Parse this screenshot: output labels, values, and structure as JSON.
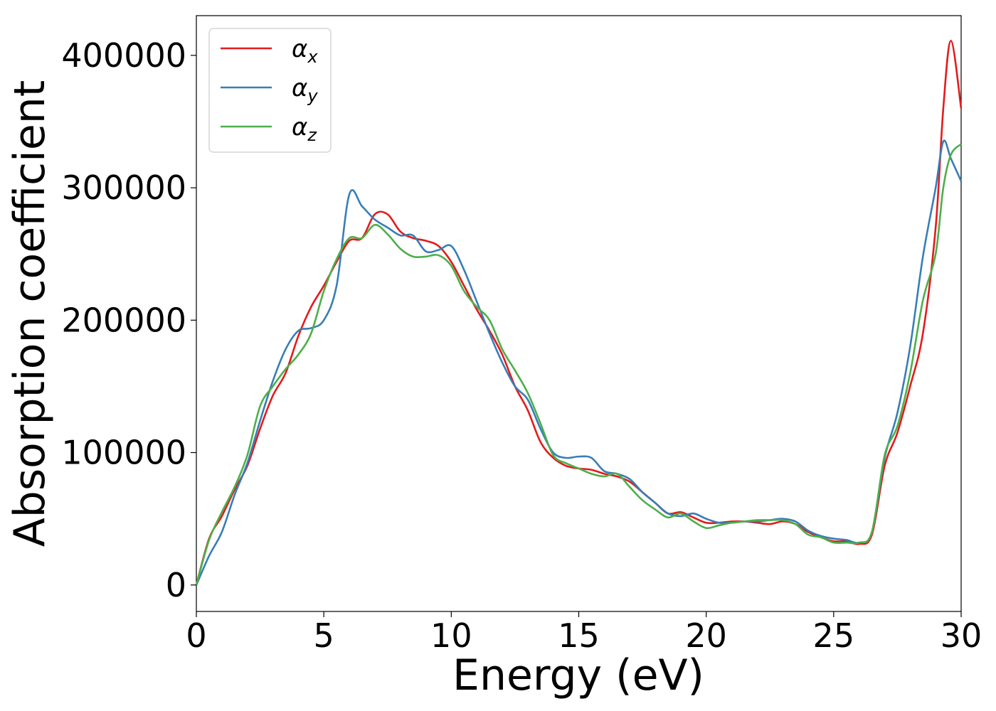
{
  "chart_data": {
    "type": "line",
    "title": "",
    "xlabel": "Energy (eV)",
    "ylabel": "Absorption coefficient",
    "xlim": [
      0,
      30
    ],
    "ylim": [
      -20000,
      430000
    ],
    "xticks": [
      "0",
      "5",
      "10",
      "15",
      "20",
      "25",
      "30"
    ],
    "yticks": [
      "0",
      "100000",
      "200000",
      "300000",
      "400000"
    ],
    "grid": false,
    "legend_position": "top-left",
    "x": [
      0,
      0.5,
      1,
      1.5,
      2,
      2.5,
      3,
      3.5,
      4,
      4.5,
      5,
      5.5,
      6,
      6.5,
      7,
      7.5,
      8,
      8.5,
      9,
      9.5,
      10,
      10.5,
      11,
      11.5,
      12,
      12.5,
      13,
      13.5,
      14,
      14.5,
      15,
      15.5,
      16,
      16.5,
      17,
      17.5,
      18,
      18.5,
      19,
      19.5,
      20,
      20.5,
      21,
      21.5,
      22,
      22.5,
      23,
      23.5,
      24,
      24.5,
      25,
      25.5,
      26,
      26.5,
      27,
      27.5,
      28,
      28.5,
      29,
      29.3,
      29.6,
      30
    ],
    "series": [
      {
        "name": "x",
        "color": "#e41a1c",
        "values": [
          0,
          35000,
          52000,
          72000,
          90000,
          118000,
          143000,
          160000,
          188000,
          210000,
          226000,
          244000,
          260000,
          262000,
          280000,
          280000,
          267000,
          262000,
          260000,
          256000,
          244000,
          226000,
          208000,
          192000,
          174000,
          150000,
          132000,
          108000,
          96000,
          90000,
          88000,
          87000,
          84000,
          82000,
          78000,
          70000,
          62000,
          54000,
          55000,
          51000,
          47000,
          47000,
          48000,
          48000,
          47000,
          46000,
          48000,
          46000,
          40000,
          36000,
          33000,
          33000,
          31000,
          38000,
          90000,
          115000,
          150000,
          190000,
          270000,
          360000,
          411000,
          360000
        ]
      },
      {
        "name": "y",
        "color": "#377eb8",
        "values": [
          0,
          22000,
          40000,
          68000,
          92000,
          124000,
          154000,
          178000,
          192000,
          194000,
          200000,
          226000,
          295000,
          286000,
          276000,
          270000,
          264000,
          264000,
          252000,
          253000,
          256000,
          238000,
          214000,
          190000,
          168000,
          150000,
          140000,
          118000,
          100000,
          96000,
          97000,
          96000,
          86000,
          84000,
          80000,
          70000,
          62000,
          54000,
          52000,
          54000,
          50000,
          47000,
          47000,
          48000,
          48000,
          49000,
          50000,
          48000,
          41000,
          37000,
          35000,
          34000,
          32000,
          40000,
          96000,
          130000,
          180000,
          248000,
          300000,
          335000,
          322000,
          305000
        ]
      },
      {
        "name": "z",
        "color": "#4daf4a",
        "values": [
          0,
          34000,
          55000,
          74000,
          98000,
          135000,
          150000,
          163000,
          174000,
          190000,
          222000,
          246000,
          262000,
          262000,
          272000,
          265000,
          254000,
          248000,
          248000,
          249000,
          241000,
          222000,
          210000,
          200000,
          178000,
          162000,
          145000,
          122000,
          98000,
          92000,
          88000,
          84000,
          82000,
          84000,
          74000,
          64000,
          57000,
          51000,
          54000,
          48000,
          43000,
          45000,
          47000,
          48000,
          49000,
          49000,
          49000,
          46000,
          38000,
          36000,
          32000,
          32000,
          32000,
          40000,
          98000,
          120000,
          160000,
          215000,
          250000,
          300000,
          325000,
          333000
        ]
      }
    ],
    "legend": [
      {
        "symbol": "α",
        "sub": "x"
      },
      {
        "symbol": "α",
        "sub": "y"
      },
      {
        "symbol": "α",
        "sub": "z"
      }
    ]
  }
}
